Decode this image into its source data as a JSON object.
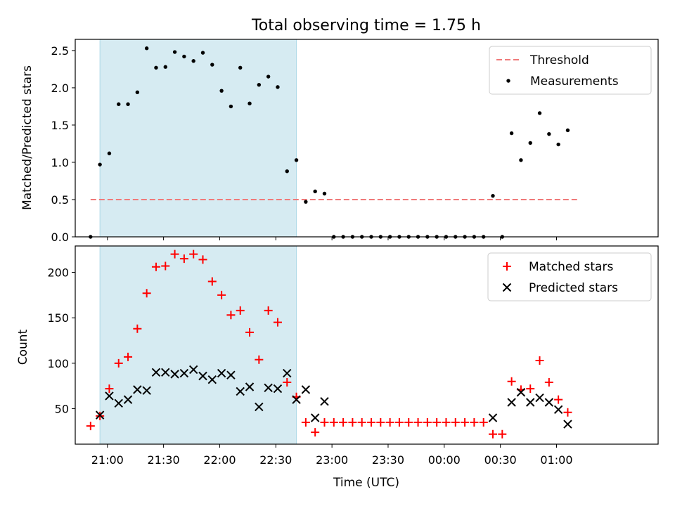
{
  "title": "Total observing time = 1.75 h",
  "chart_data": [
    {
      "type": "scatter",
      "ylabel": "Matched/Predicted stars",
      "ylim": [
        0,
        2.65
      ],
      "yticks": [
        0.0,
        0.5,
        1.0,
        1.5,
        2.0,
        2.5
      ],
      "ytick_labels": [
        "0.0",
        "0.5",
        "1.0",
        "1.5",
        "2.0",
        "2.5"
      ],
      "legend_position": "top-right",
      "shaded_interval": [
        "20:56",
        "22:41"
      ],
      "threshold": {
        "name": "Threshold",
        "value": 0.5,
        "x_range": [
          "20:51",
          "01:11"
        ],
        "color": "#f07a7a"
      },
      "series": [
        {
          "name": "Measurements",
          "color": "#000000",
          "x": [
            "20:51",
            "20:56",
            "21:01",
            "21:06",
            "21:11",
            "21:16",
            "21:21",
            "21:26",
            "21:31",
            "21:36",
            "21:41",
            "21:46",
            "21:51",
            "21:56",
            "22:01",
            "22:06",
            "22:11",
            "22:16",
            "22:21",
            "22:26",
            "22:31",
            "22:36",
            "22:41",
            "22:46",
            "22:51",
            "22:56",
            "23:01",
            "23:06",
            "23:11",
            "23:16",
            "23:21",
            "23:26",
            "23:31",
            "23:36",
            "23:41",
            "23:46",
            "23:51",
            "23:56",
            "00:01",
            "00:06",
            "00:11",
            "00:16",
            "00:21",
            "00:26",
            "00:31",
            "00:36",
            "00:41",
            "00:46",
            "00:51",
            "00:56",
            "01:01",
            "01:06"
          ],
          "y": [
            0.0,
            0.97,
            1.12,
            1.78,
            1.78,
            1.94,
            2.53,
            2.27,
            2.28,
            2.48,
            2.42,
            2.36,
            2.47,
            2.31,
            1.96,
            1.75,
            2.27,
            1.79,
            2.04,
            2.15,
            2.01,
            0.88,
            1.03,
            0.47,
            0.61,
            0.58,
            0.0,
            0.0,
            0.0,
            0.0,
            0.0,
            0.0,
            0.0,
            0.0,
            0.0,
            0.0,
            0.0,
            0.0,
            0.0,
            0.0,
            0.0,
            0.0,
            0.0,
            0.55,
            0.0,
            1.39,
            1.03,
            1.26,
            1.66,
            1.38,
            1.24,
            1.43
          ]
        }
      ]
    },
    {
      "type": "scatter",
      "xlabel": "Time (UTC)",
      "ylabel": "Count",
      "ylim": [
        11,
        229
      ],
      "yticks": [
        50,
        100,
        150,
        200
      ],
      "ytick_labels": [
        "50",
        "100",
        "150",
        "200"
      ],
      "xticks": [
        "21:00",
        "21:30",
        "22:00",
        "22:30",
        "23:00",
        "23:30",
        "00:00",
        "00:30",
        "01:00"
      ],
      "legend_position": "top-right",
      "shaded_interval": [
        "20:56",
        "22:41"
      ],
      "series": [
        {
          "name": "Matched stars",
          "marker": "plus",
          "color": "#ff0000",
          "x": [
            "20:51",
            "20:56",
            "21:01",
            "21:06",
            "21:11",
            "21:16",
            "21:21",
            "21:26",
            "21:31",
            "21:36",
            "21:41",
            "21:46",
            "21:51",
            "21:56",
            "22:01",
            "22:06",
            "22:11",
            "22:16",
            "22:21",
            "22:26",
            "22:31",
            "22:36",
            "22:41",
            "22:46",
            "22:51",
            "22:56",
            "23:01",
            "23:06",
            "23:11",
            "23:16",
            "23:21",
            "23:26",
            "23:31",
            "23:36",
            "23:41",
            "23:46",
            "23:51",
            "23:56",
            "00:01",
            "00:06",
            "00:11",
            "00:16",
            "00:21",
            "00:26",
            "00:31",
            "00:36",
            "00:41",
            "00:46",
            "00:51",
            "00:56",
            "01:01",
            "01:06"
          ],
          "y": [
            31,
            42,
            72,
            100,
            107,
            138,
            177,
            206,
            207,
            220,
            215,
            220,
            214,
            190,
            175,
            153,
            158,
            134,
            104,
            158,
            145,
            79,
            63,
            35,
            24,
            35,
            35,
            35,
            35,
            35,
            35,
            35,
            35,
            35,
            35,
            35,
            35,
            35,
            35,
            35,
            35,
            35,
            35,
            22,
            22,
            80,
            71,
            72,
            103,
            79,
            60,
            46
          ]
        },
        {
          "name": "Predicted stars",
          "marker": "x",
          "color": "#000000",
          "x": [
            "20:56",
            "21:01",
            "21:06",
            "21:11",
            "21:16",
            "21:21",
            "21:26",
            "21:31",
            "21:36",
            "21:41",
            "21:46",
            "21:51",
            "21:56",
            "22:01",
            "22:06",
            "22:11",
            "22:16",
            "22:21",
            "22:26",
            "22:31",
            "22:36",
            "22:41",
            "22:46",
            "22:51",
            "22:56",
            "00:26",
            "00:36",
            "00:41",
            "00:46",
            "00:51",
            "00:56",
            "01:01",
            "01:06"
          ],
          "y": [
            43,
            64,
            56,
            60,
            71,
            70,
            90,
            90,
            88,
            89,
            93,
            86,
            82,
            89,
            87,
            69,
            74,
            52,
            73,
            72,
            89,
            60,
            71,
            40,
            58,
            40,
            57,
            68,
            57,
            62,
            57,
            49,
            33
          ]
        }
      ]
    }
  ]
}
